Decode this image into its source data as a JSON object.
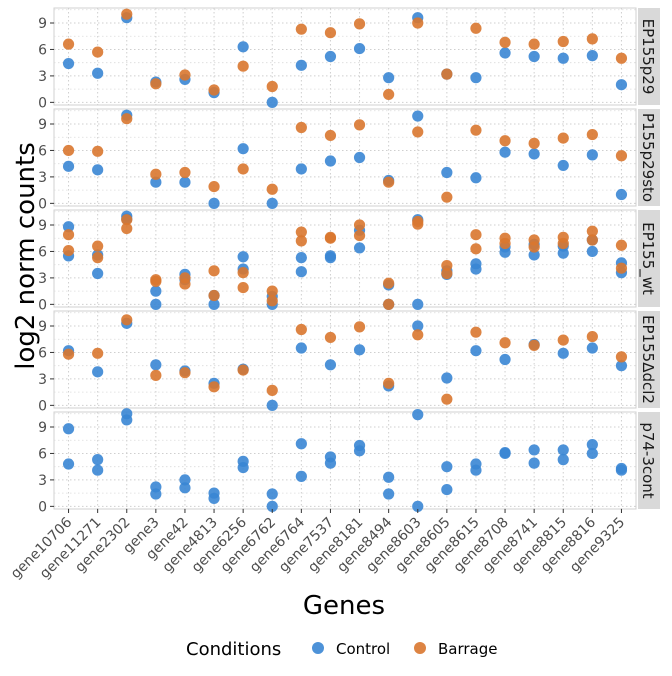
{
  "chart_data": {
    "type": "scatter",
    "xlabel": "Genes",
    "ylabel": "log2 norm counts",
    "legend": {
      "title": "Conditions",
      "position": "bottom",
      "entries": [
        {
          "name": "Control",
          "color": "#3a86d4"
        },
        {
          "name": "Barrage",
          "color": "#d9772f"
        }
      ]
    },
    "categories": [
      "gene10706",
      "gene11271",
      "gene2302",
      "gene3",
      "gene42",
      "gene4813",
      "gene6256",
      "gene6762",
      "gene6764",
      "gene7537",
      "gene8181",
      "gene8494",
      "gene8603",
      "gene8605",
      "gene8615",
      "gene8708",
      "gene8741",
      "gene8815",
      "gene8816",
      "gene9325"
    ],
    "ylim": [
      -0.3,
      10.7
    ],
    "yticks": [
      0,
      3,
      6,
      9
    ],
    "grid": true,
    "facets": [
      {
        "label": "EP155p29",
        "control": [
          [
            4.4
          ],
          [
            3.3
          ],
          [
            9.6
          ],
          [
            2.3
          ],
          [
            2.6
          ],
          [
            1.1
          ],
          [
            6.3
          ],
          [
            0
          ],
          [
            4.2
          ],
          [
            5.2
          ],
          [
            6.1
          ],
          [
            2.8
          ],
          [
            9.6
          ],
          [
            3.2
          ],
          [
            2.8
          ],
          [
            5.6
          ],
          [
            5.2
          ],
          [
            5.0
          ],
          [
            5.3
          ],
          [
            2.0
          ]
        ],
        "barrage": [
          [
            6.6
          ],
          [
            5.7
          ],
          [
            10.0
          ],
          [
            2.1
          ],
          [
            3.1
          ],
          [
            1.4
          ],
          [
            4.1
          ],
          [
            1.8
          ],
          [
            8.3
          ],
          [
            7.9
          ],
          [
            8.9
          ],
          [
            0.9
          ],
          [
            9.0
          ],
          [
            3.2
          ],
          [
            8.4
          ],
          [
            6.8
          ],
          [
            6.6
          ],
          [
            6.9
          ],
          [
            7.2
          ],
          [
            5.0
          ]
        ]
      },
      {
        "label": "P155p29sto",
        "control": [
          [
            4.2
          ],
          [
            3.8
          ],
          [
            10.0
          ],
          [
            2.4
          ],
          [
            2.4
          ],
          [
            0
          ],
          [
            6.2
          ],
          [
            0
          ],
          [
            3.9
          ],
          [
            4.8
          ],
          [
            5.2
          ],
          [
            2.6
          ],
          [
            9.9
          ],
          [
            3.5
          ],
          [
            2.9
          ],
          [
            5.8
          ],
          [
            5.6
          ],
          [
            4.3
          ],
          [
            5.5
          ],
          [
            1.0
          ]
        ],
        "barrage": [
          [
            6.0
          ],
          [
            5.9
          ],
          [
            9.6
          ],
          [
            3.3
          ],
          [
            3.5
          ],
          [
            1.9
          ],
          [
            3.9
          ],
          [
            1.6
          ],
          [
            8.6
          ],
          [
            7.7
          ],
          [
            8.9
          ],
          [
            2.4
          ],
          [
            8.1
          ],
          [
            0.7
          ],
          [
            8.3
          ],
          [
            7.1
          ],
          [
            6.8
          ],
          [
            7.4
          ],
          [
            7.8
          ],
          [
            5.4
          ]
        ]
      },
      {
        "label": "EP155_wt",
        "control": [
          [
            8.8,
            5.5
          ],
          [
            5.6,
            3.5
          ],
          [
            10.0,
            9.7
          ],
          [
            1.5,
            0
          ],
          [
            3.4,
            2.8
          ],
          [
            1.0,
            0
          ],
          [
            5.4,
            4.0
          ],
          [
            0.9,
            0
          ],
          [
            5.3,
            3.7
          ],
          [
            5.5,
            5.3
          ],
          [
            8.4,
            6.4
          ],
          [
            2.2,
            0
          ],
          [
            9.6,
            0
          ],
          [
            3.8,
            3.4
          ],
          [
            4.6,
            4.0
          ],
          [
            6.5,
            5.9
          ],
          [
            6.8,
            5.6
          ],
          [
            6.6,
            5.8
          ],
          [
            7.3,
            6.0
          ],
          [
            4.7,
            3.6
          ]
        ],
        "barrage": [
          [
            7.9,
            6.1
          ],
          [
            6.6,
            5.3
          ],
          [
            9.6,
            8.6
          ],
          [
            2.8,
            2.6
          ],
          [
            3.0,
            2.3
          ],
          [
            3.8,
            1.0
          ],
          [
            3.6,
            1.9
          ],
          [
            1.5,
            0.4
          ],
          [
            8.2,
            7.2
          ],
          [
            7.6,
            7.5
          ],
          [
            9.0,
            7.8
          ],
          [
            2.4,
            0
          ],
          [
            9.4,
            9.1
          ],
          [
            4.4,
            3.5
          ],
          [
            7.9,
            6.3
          ],
          [
            7.5,
            6.9
          ],
          [
            7.3,
            6.5
          ],
          [
            7.6,
            6.9
          ],
          [
            8.3,
            7.3
          ],
          [
            6.7,
            4.1
          ]
        ]
      },
      {
        "label": "EP155Δdcl2",
        "control": [
          [
            6.2
          ],
          [
            3.8
          ],
          [
            9.3
          ],
          [
            4.6
          ],
          [
            3.9
          ],
          [
            2.5
          ],
          [
            4.1
          ],
          [
            0
          ],
          [
            6.5
          ],
          [
            4.6
          ],
          [
            6.3
          ],
          [
            2.2
          ],
          [
            9.0
          ],
          [
            3.1
          ],
          [
            6.2
          ],
          [
            5.2
          ],
          [
            6.9
          ],
          [
            5.9
          ],
          [
            6.5
          ],
          [
            4.5
          ]
        ],
        "barrage": [
          [
            5.8
          ],
          [
            5.9
          ],
          [
            9.7
          ],
          [
            3.4
          ],
          [
            3.7
          ],
          [
            2.1
          ],
          [
            4.0
          ],
          [
            1.7
          ],
          [
            8.6
          ],
          [
            7.7
          ],
          [
            8.9
          ],
          [
            2.5
          ],
          [
            8.0
          ],
          [
            0.7
          ],
          [
            8.3
          ],
          [
            7.1
          ],
          [
            6.8
          ],
          [
            7.4
          ],
          [
            7.8
          ],
          [
            5.5
          ]
        ]
      },
      {
        "label": "p74-3cont",
        "control": [
          [
            8.8,
            4.8
          ],
          [
            5.3,
            4.1
          ],
          [
            10.5,
            9.8
          ],
          [
            2.2,
            1.4
          ],
          [
            3.0,
            2.1
          ],
          [
            1.5,
            0.9
          ],
          [
            5.1,
            4.4
          ],
          [
            1.4,
            0
          ],
          [
            7.1,
            3.4
          ],
          [
            5.6,
            4.9
          ],
          [
            6.9,
            6.3
          ],
          [
            3.3,
            1.4
          ],
          [
            10.4,
            0
          ],
          [
            4.5,
            1.9
          ],
          [
            4.8,
            4.1
          ],
          [
            6.1,
            6.0
          ],
          [
            6.4,
            4.9
          ],
          [
            6.4,
            5.3
          ],
          [
            7.0,
            6.0
          ],
          [
            4.3,
            4.1
          ]
        ],
        "barrage": []
      }
    ]
  }
}
